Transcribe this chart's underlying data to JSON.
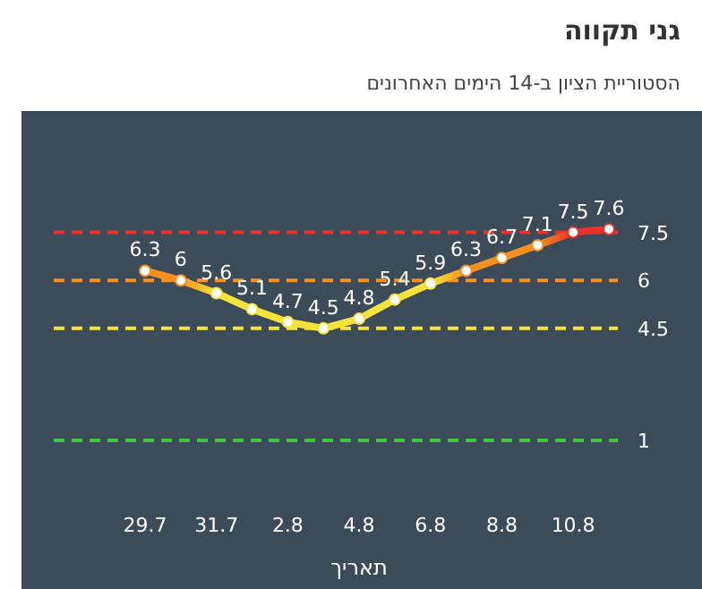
{
  "chart_data": {
    "type": "line",
    "title": "גני תקווה",
    "subtitle": "הסטוריית הציון ב-14 הימים האחרונים",
    "xlabel": "תאריך",
    "categories": [
      "29.7",
      null,
      "31.7",
      null,
      "2.8",
      null,
      "4.8",
      null,
      "6.8",
      null,
      "8.8",
      null,
      "10.8",
      null
    ],
    "series": [
      {
        "values": [
          6.3,
          6,
          5.6,
          5.1,
          4.7,
          4.5,
          4.8,
          5.4,
          5.9,
          6.3,
          6.7,
          7.1,
          7.5,
          7.6
        ],
        "colors": [
          "#f7901e",
          "#f7901e",
          "#f5e33b",
          "#f5e33b",
          "#f5e33b",
          "#f5e33b",
          "#f5e33b",
          "#f5e33b",
          "#f5e33b",
          "#f7901e",
          "#f7901e",
          "#f7901e",
          "#e8322b",
          "#e8322b"
        ]
      }
    ],
    "data_labels": true,
    "marker": "circle",
    "ref_lines": [
      {
        "axis": "y",
        "value": 7.5,
        "label": "7.5",
        "color": "#e8322b",
        "line_style": "dashed"
      },
      {
        "axis": "y",
        "value": 6,
        "label": "6",
        "color": "#f7901e",
        "line_style": "dashed"
      },
      {
        "axis": "y",
        "value": 4.5,
        "label": "4.5",
        "color": "#f5e33b",
        "line_style": "dashed"
      },
      {
        "axis": "y",
        "value": 1,
        "label": "1",
        "color": "#3ec43e",
        "line_style": "dashed"
      }
    ]
  }
}
